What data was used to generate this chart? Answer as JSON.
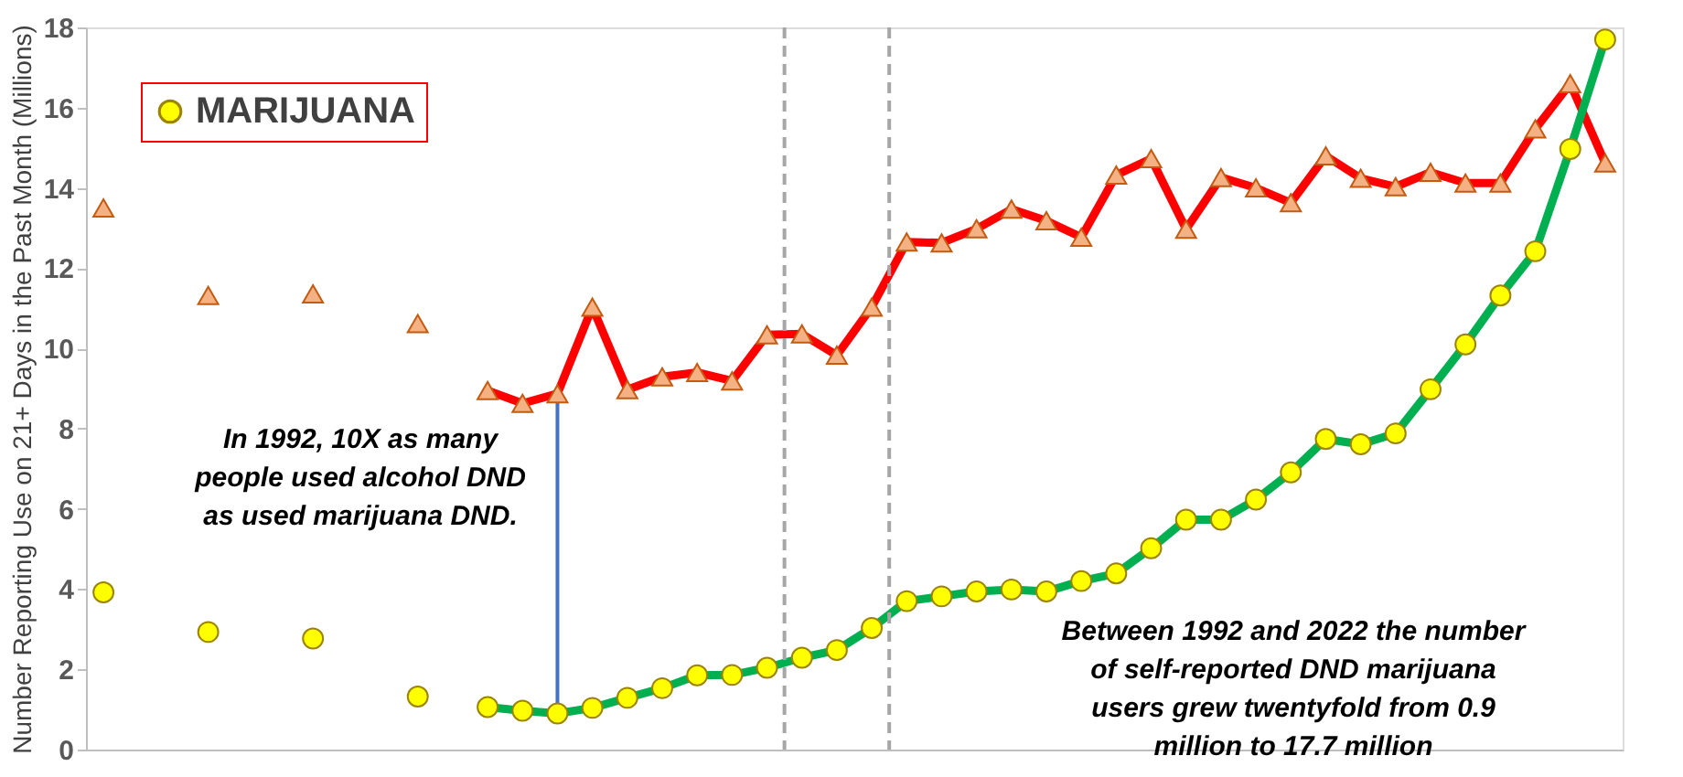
{
  "chart_data": {
    "type": "line",
    "ylabel": "Number Reporting Use on 21+ Days in the Past Month (Millions)",
    "ylim": [
      0,
      18
    ],
    "yticks": [
      0,
      2,
      4,
      6,
      8,
      10,
      12,
      14,
      16,
      18
    ],
    "tick_labels": "y",
    "legend": "top left",
    "categories": [
      null,
      null,
      null,
      null,
      null,
      null,
      null,
      null,
      null,
      null,
      null,
      null,
      null,
      null,
      null,
      null,
      null,
      null,
      null,
      null,
      null,
      null,
      null,
      null,
      null,
      null,
      null,
      null,
      null,
      null,
      null,
      null,
      null,
      null,
      null,
      null,
      null,
      null,
      null,
      null,
      null,
      null,
      null,
      null
    ],
    "series": [
      {
        "color": "#ff0000",
        "marker": "none",
        "values": [
          null,
          null,
          null,
          null,
          null,
          null,
          null,
          null,
          null,
          null,
          null,
          8.95,
          8.63,
          8.87,
          11.03,
          8.97,
          9.29,
          9.4,
          9.19,
          10.34,
          10.36,
          9.83,
          11.03,
          12.65,
          12.63,
          12.98,
          13.47,
          13.18,
          12.77,
          14.32,
          14.73,
          12.97,
          14.26,
          14.0,
          13.63,
          14.8,
          14.24,
          14.03,
          14.39,
          14.12,
          14.12,
          15.47,
          16.6,
          14.62
        ]
      },
      {
        "color": "#00b050",
        "marker": "none",
        "values": [
          null,
          null,
          null,
          null,
          null,
          null,
          null,
          null,
          null,
          null,
          null,
          1.06,
          0.97,
          0.9,
          1.04,
          1.29,
          1.53,
          1.85,
          1.86,
          2.04,
          2.29,
          2.48,
          3.03,
          3.7,
          3.82,
          3.94,
          3.99,
          3.94,
          4.2,
          4.39,
          5.02,
          5.73,
          5.73,
          6.23,
          6.91,
          7.74,
          7.61,
          7.88,
          8.98,
          10.1,
          11.32,
          12.42,
          14.97,
          17.7
        ]
      },
      {
        "type": "scatter",
        "color": "#f4b183",
        "marker": "triangle",
        "values": [
          13.5,
          null,
          null,
          11.32,
          null,
          null,
          11.36,
          null,
          null,
          10.62,
          null,
          8.95,
          8.63,
          8.87,
          11.03,
          8.97,
          9.29,
          9.4,
          9.19,
          10.34,
          10.36,
          9.83,
          11.03,
          12.65,
          12.63,
          12.98,
          13.47,
          13.18,
          12.77,
          14.32,
          14.73,
          12.97,
          14.26,
          14.0,
          13.63,
          14.8,
          14.24,
          14.03,
          14.39,
          14.12,
          14.12,
          15.47,
          16.6,
          14.62
        ]
      },
      {
        "type": "scatter",
        "name": "MARIJUANA",
        "color": "#ffff00",
        "marker": "circle",
        "values": [
          3.92,
          null,
          null,
          2.93,
          null,
          null,
          2.77,
          null,
          null,
          1.32,
          null,
          1.06,
          0.97,
          0.9,
          1.04,
          1.29,
          1.53,
          1.85,
          1.86,
          2.04,
          2.29,
          2.48,
          3.03,
          3.7,
          3.82,
          3.94,
          3.99,
          3.94,
          4.2,
          4.39,
          5.02,
          5.73,
          5.73,
          6.23,
          6.91,
          7.74,
          7.61,
          7.88,
          8.98,
          10.1,
          11.32,
          12.42,
          14.97,
          17.7
        ]
      }
    ],
    "annotations": [
      "In 1992, 10X as many people used alcohol DND as used marijuana DND.",
      "Between 1992 and 2022 the number of self-reported DND marijuana users grew twentyfold from 0.9 million to 17.7 million"
    ]
  }
}
